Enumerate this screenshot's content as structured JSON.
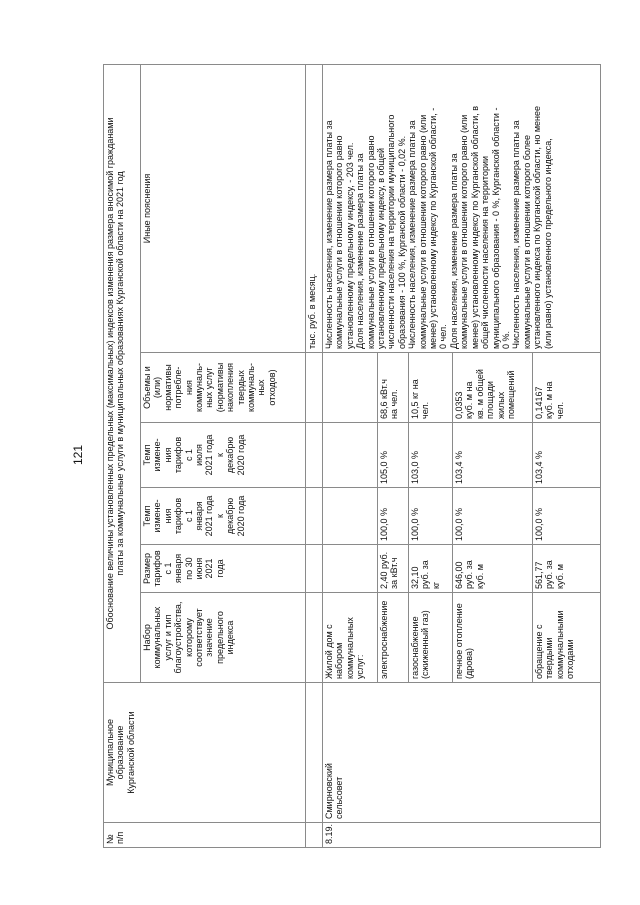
{
  "page_number": "121",
  "table": {
    "headers": {
      "num": "№ п/п",
      "municipality": "Муниципальное\nобразование\nКурганской области",
      "group_title": "Обоснование величины установленных предельных (максимальных) индексов изменения размера вносимой гражданами\nплаты за коммунальные услуги в муниципальных образованиях Курганской области на 2021 год",
      "services_set": "Набор\nкоммунальных\nуслуг и тип\nблагоустройства,\nкоторому\nсоответствует\nзначение\nпредельного\nиндекса",
      "tariff_size": "Размер\nтарифов\nс 1\nянваря\nпо 30\nиюня\n2021\nгода",
      "rate_jan": "Темп\nизмене-\nния\nтарифов\nс 1\nянваря\n2021 года\nк\nдекабрю\n2020 года",
      "rate_jul": "Темп\nизмене-\nния\nтарифов\nс 1\nиюля\n2021 года\nк\nдекабрю\n2020 года",
      "volumes": "Объемы и\n(или)\nнормативы\nпотребле-\nния\nкоммуналь-\nных услуг\n(нормативы\nнакопления\nтвердых\nкоммуналь-\nных\nотходов)",
      "notes": "Иные пояснения"
    },
    "unit_note": "тыс. руб. в месяц.",
    "row": {
      "num": "8.19.",
      "municipality": "Смирновский\nсельсовет",
      "housing": "Жилой дом с\nнабором\nкоммунальных\nуслуг:",
      "services": [
        {
          "name": "электроснабжение",
          "tariff": "2,40 руб.\nза кВт.ч",
          "rate_jan": "100,0 %",
          "rate_jul": "105,0 %",
          "volume": "68,6 кВт.ч\nна чел."
        },
        {
          "name": "газоснабжение\n(сжиженный газ)",
          "tariff": "32,10\nруб. за\nкг",
          "rate_jan": "100,0 %",
          "rate_jul": "103,0 %",
          "volume": "10,5 кг на\nчел."
        },
        {
          "name": "печное отопление\n(дрова)",
          "tariff": "646,00\nруб. за\nкуб. м",
          "rate_jan": "100,0 %",
          "rate_jul": "103,4 %",
          "volume": "0,0353\nкуб. м на\nкв. м общей\nплощади\nжилых\nпомещений"
        },
        {
          "name": "обращение с\nтвердыми\nкоммунальными\nотходами",
          "tariff": "561,77\nруб. за\nкуб. м",
          "rate_jan": "100,0 %",
          "rate_jul": "103,4 %",
          "volume": "0,14167\nкуб. м на\nчел."
        }
      ],
      "notes": "Численность населения, изменение размера платы за\nкоммунальные услуги в отношении которого равно\nустановленному предельному индексу, - 203 чел.\nДоля населения, изменение размера платы за\nкоммунальные услуги в отношении которого равно\nустановленному предельному индексу, в общей\nчисленности населения на территории муниципального\nобразования - 100 %, Курганской области - 0,02 %.\nЧисленность населения, изменение размера платы за\nкоммунальные услуги в отношении которого равно (или\nменее) установленному индексу по Курганской области, -\n0 чел.\nДоля населения, изменение размера платы за\nкоммунальные услуги в отношении которого равно (или\nменее) установленному индексу по Курганской области, в\nобщей численности населения на территории\nмуниципального образования - 0 %, Курганской области -\n0 %.\nЧисленность населения, изменение размера платы за\nкоммунальные услуги в отношении которого более\nустановленного индекса по Курганской области, но менее\n(или равно) установленного предельного индекса,"
    }
  }
}
